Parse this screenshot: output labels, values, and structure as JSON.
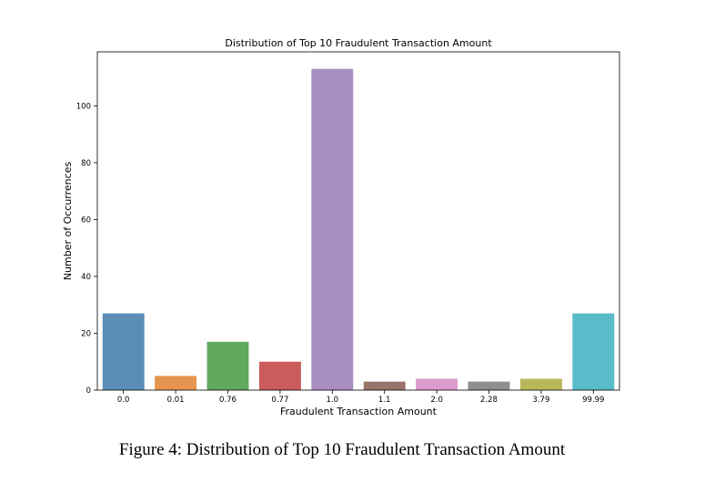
{
  "chart_data": {
    "type": "bar",
    "title": "Distribution of Top 10 Fraudulent Transaction Amount",
    "xlabel": "Fraudulent Transaction Amount",
    "ylabel": "Number of Occurrences",
    "categories": [
      "0.0",
      "0.01",
      "0.76",
      "0.77",
      "1.0",
      "1.1",
      "2.0",
      "2.28",
      "3.79",
      "99.99"
    ],
    "values": [
      27,
      5,
      17,
      10,
      113,
      3,
      4,
      3,
      4,
      27
    ],
    "colors": [
      "#5b8db8",
      "#e6954f",
      "#60a95f",
      "#cc5b5b",
      "#a98ec2",
      "#9a7468",
      "#dd9ccb",
      "#8f8f8f",
      "#b9b75a",
      "#59bcc8"
    ],
    "ylim": [
      0,
      119
    ],
    "yticks": [
      0,
      20,
      40,
      60,
      80,
      100
    ],
    "grid": false,
    "legend": "none"
  },
  "caption": "Figure 4: Distribution of Top 10 Fraudulent Transaction Amount"
}
